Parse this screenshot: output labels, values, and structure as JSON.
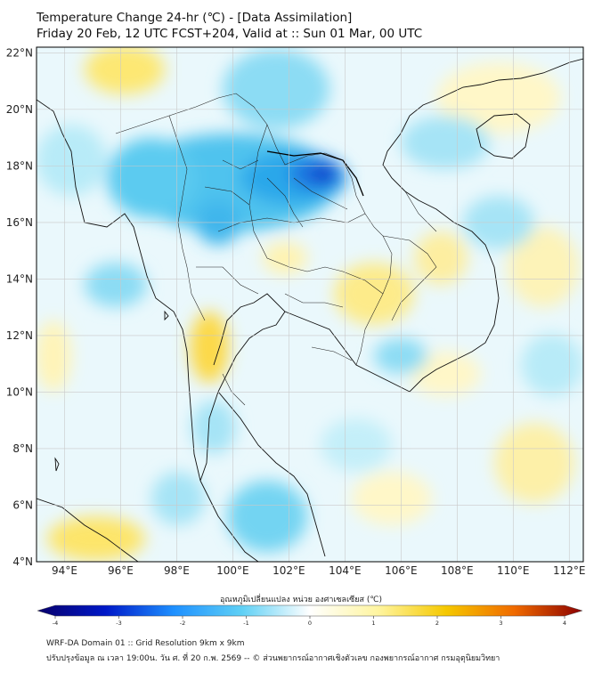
{
  "title": {
    "line1": "Temperature Change 24-hr (℃) - [Data Assimilation]",
    "line2": "Friday 20 Feb, 12 UTC FCST+204, Valid at :: Sun 01 Mar, 00 UTC"
  },
  "map": {
    "lat_ticks": [
      "22°N",
      "20°N",
      "18°N",
      "16°N",
      "14°N",
      "12°N",
      "10°N",
      "8°N",
      "6°N",
      "4°N"
    ],
    "lon_ticks": [
      "94°E",
      "96°E",
      "98°E",
      "100°E",
      "102°E",
      "104°E",
      "106°E",
      "108°E",
      "110°E",
      "112°E"
    ],
    "lat_range": [
      4,
      22.2
    ],
    "lon_range": [
      93,
      112.5
    ]
  },
  "colorbar": {
    "label": "อุณหภูมิเปลี่ยนแปลง หน่วย องศาเซลเซียส (℃)",
    "ticks": [
      "-4",
      "-3",
      "-2",
      "-1",
      "0",
      "1",
      "2",
      "3",
      "4"
    ],
    "range": [
      -4,
      4
    ],
    "colors": [
      "#08006b",
      "#0018c8",
      "#1e90ff",
      "#5fd0f5",
      "#ffffff",
      "#fff5a0",
      "#f5c800",
      "#f06a00",
      "#8b0000"
    ]
  },
  "footer": {
    "line1": "WRF-DA Domain 01 :: Grid Resolution 9km x 9km",
    "line2": "ปรับปรุงข้อมูล ณ เวลา 19:00น. วัน ศ. ที่ 20 ก.พ. 2569 -- © ส่วนพยากรณ์อากาศเชิงตัวเลข กองพยากรณ์อากาศ กรมอุตุนิยมวิทยา"
  }
}
